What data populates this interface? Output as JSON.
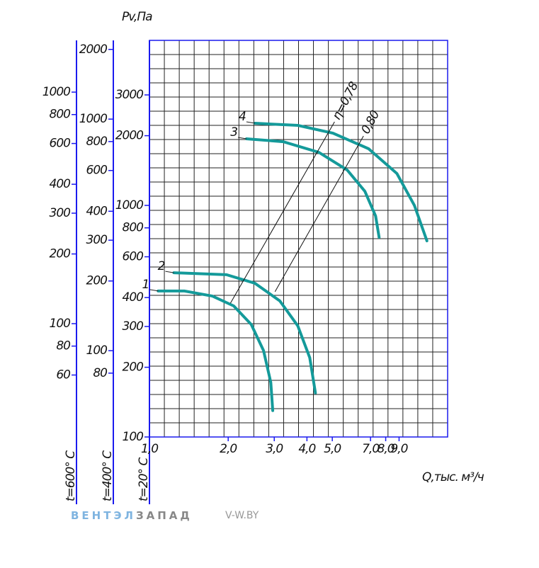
{
  "chart_data": {
    "type": "line",
    "y_title": "Pv,Па",
    "x_title": "Q,тыс. м³/ч",
    "xlog": true,
    "ylog": true,
    "xlim": [
      1,
      13.8
    ],
    "xticks": [
      {
        "value": 1,
        "label": "1,0"
      },
      {
        "value": 2,
        "label": "2,0"
      },
      {
        "value": 3,
        "label": "3,0"
      },
      {
        "value": 4,
        "label": "4,0"
      },
      {
        "value": 5,
        "label": "5,0"
      },
      {
        "value": 7,
        "label": "7,0"
      },
      {
        "value": 8,
        "label": "8,0"
      },
      {
        "value": 9,
        "label": "9,0"
      }
    ],
    "ylim": [
      100,
      5160
    ],
    "yticks": [
      100,
      200,
      300,
      400,
      600,
      800,
      1000,
      2000,
      3000
    ],
    "y_label": "t=20° C",
    "extra_y_axes": [
      {
        "label": "t=600° C",
        "ylim": [
          32.4,
          1673
        ],
        "yticks": [
          60,
          80,
          100,
          200,
          300,
          400,
          600,
          800,
          1000
        ]
      },
      {
        "label": "t=400° C",
        "ylim": [
          42.4,
          2188
        ],
        "yticks": [
          80,
          100,
          200,
          300,
          400,
          600,
          800,
          1000,
          2000
        ]
      }
    ],
    "series": [
      {
        "name": "1",
        "color": "#149a9a",
        "x": [
          1.08,
          1.36,
          1.74,
          2.1,
          2.45,
          2.73,
          2.91,
          2.96
        ],
        "values": [
          427,
          427,
          406,
          368,
          306,
          236,
          172,
          130
        ]
      },
      {
        "name": "2",
        "color": "#149a9a",
        "x": [
          1.24,
          1.97,
          2.53,
          3.15,
          3.69,
          4.1,
          4.31
        ],
        "values": [
          512,
          502,
          461,
          387,
          302,
          220,
          155
        ]
      },
      {
        "name": "3",
        "color": "#149a9a",
        "x": [
          2.35,
          3.25,
          4.44,
          5.7,
          6.66,
          7.32,
          7.55
        ],
        "values": [
          1939,
          1884,
          1695,
          1422,
          1151,
          900,
          728
        ]
      },
      {
        "name": "4",
        "color": "#149a9a",
        "x": [
          2.53,
          3.69,
          5.03,
          6.88,
          8.83,
          10.3,
          11.5
        ],
        "values": [
          2263,
          2216,
          2051,
          1757,
          1373,
          1000,
          703
        ]
      }
    ],
    "efficiency_lines": [
      {
        "name": "η=0,78",
        "x": [
          2.04,
          5.1
        ],
        "values": [
          378,
          2296
        ]
      },
      {
        "name": "0,80",
        "x": [
          3.02,
          6.58
        ],
        "values": [
          424,
          1995
        ]
      }
    ]
  },
  "footer": {
    "brand_1": "ВЕНТЭЛ",
    "brand_2": "ЗАПАД",
    "site": "V-W.BY"
  }
}
